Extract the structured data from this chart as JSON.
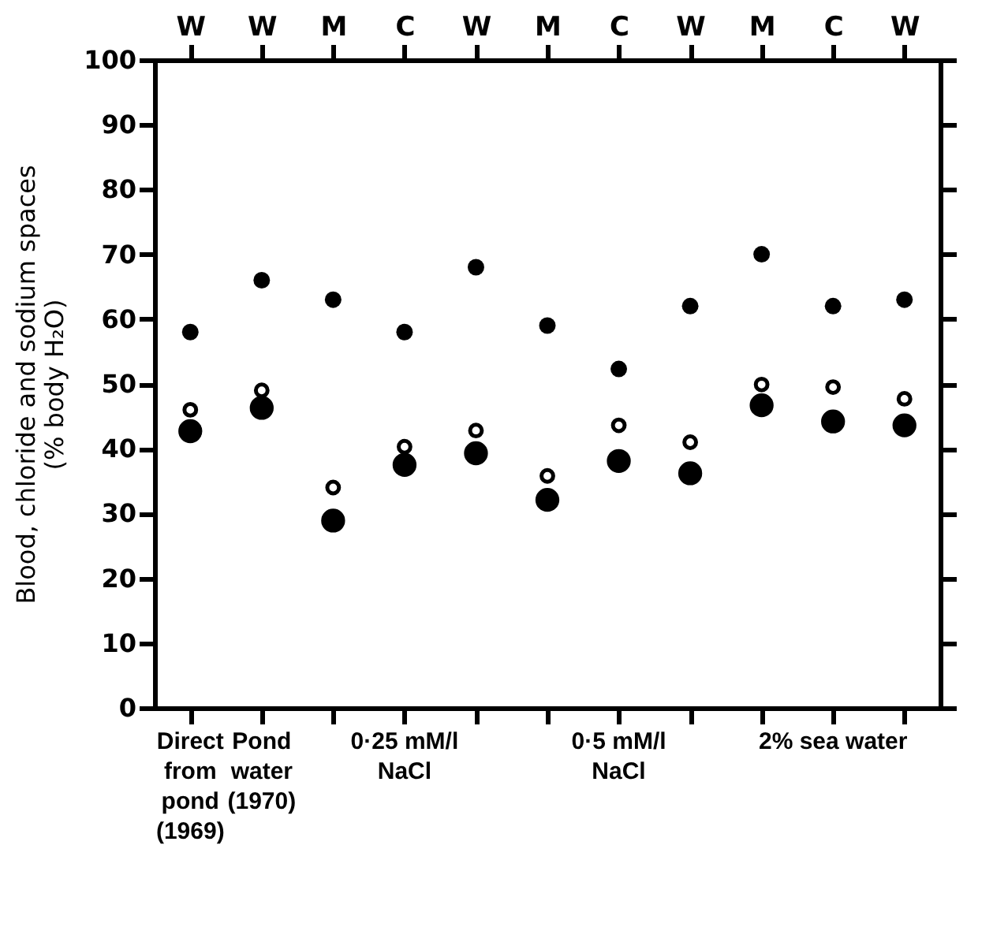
{
  "chart_data": {
    "type": "scatter",
    "ylabel": "Blood, chloride and sodium spaces\n(% body H₂O)",
    "categories": [
      "W",
      "W",
      "M",
      "C",
      "W",
      "M",
      "C",
      "W",
      "M",
      "C",
      "W"
    ],
    "series": [
      {
        "color": "#000000",
        "values": [
          58,
          66,
          63,
          58,
          68,
          59,
          52.3,
          62,
          70,
          62,
          63
        ]
      },
      {
        "color": "#000000",
        "values": [
          46,
          49,
          34,
          40.3,
          42.8,
          35.8,
          43.6,
          41,
          49.9,
          49.5,
          47.7
        ]
      },
      {
        "color": "#000000",
        "values": [
          42.7,
          46.3,
          28.9,
          37.5,
          39.3,
          32.1,
          38.1,
          36.2,
          46.7,
          44.2,
          43.6
        ]
      }
    ],
    "ylim": [
      0,
      100
    ],
    "yticks": [
      0,
      10,
      20,
      30,
      40,
      50,
      60,
      70,
      80,
      90,
      100
    ],
    "grid": false,
    "annotations": [
      "Direct\nfrom\npond\n(1969)",
      "Pond\nwater\n(1970)",
      "0·25 mM/l\nNaCl",
      "0·5 mM/l\nNaCl",
      "2% sea water"
    ]
  }
}
